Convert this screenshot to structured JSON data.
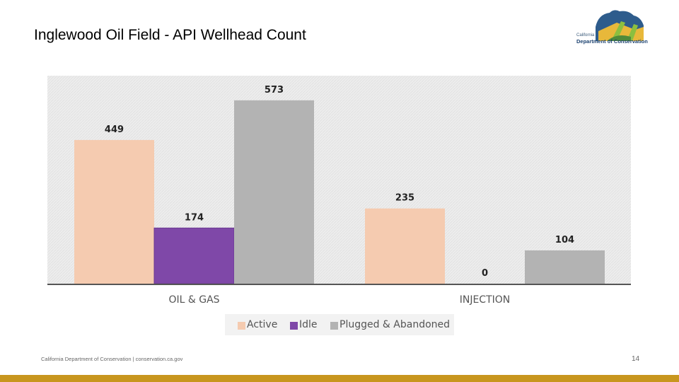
{
  "header": {
    "title": "Inglewood Oil Field - API  Wellhead Count",
    "logo_line1": "California",
    "logo_line2": "Department of Conservation"
  },
  "footer": {
    "text": "California Department of Conservation | conservation.ca.gov",
    "page": "14"
  },
  "colors": {
    "active": "#f5cbb0",
    "idle": "#7f48a8",
    "plugged": "#b3b3b3",
    "accent": "#c8961e"
  },
  "chart_data": {
    "type": "bar",
    "categories": [
      "OIL & GAS",
      "INJECTION"
    ],
    "series": [
      {
        "name": "Active",
        "values": [
          449,
          235
        ]
      },
      {
        "name": "Idle",
        "values": [
          174,
          0
        ]
      },
      {
        "name": "Plugged & Abandoned",
        "values": [
          573,
          104
        ]
      }
    ],
    "ylim": [
      0,
      650
    ],
    "legend": "bottom-center"
  }
}
